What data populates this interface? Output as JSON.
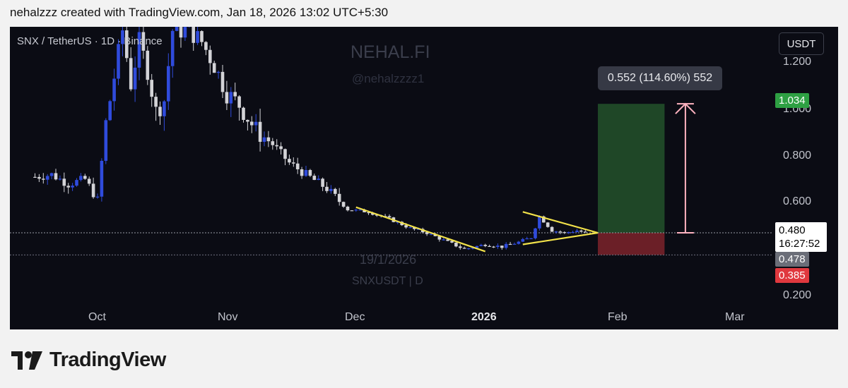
{
  "header": {
    "text": "nehalzzz created with TradingView.com, Jan 18, 2026 13:02 UTC+5:30"
  },
  "symbol_line": "SNX / TetherUS · 1D · Binance",
  "watermarks": {
    "brand": "NEHAL.FI",
    "handle": "@nehalzzzz1",
    "date": "19/1/2026",
    "pair": "SNXUSDT | D"
  },
  "currency": "USDT",
  "measure_label": "0.552 (114.60%) 552",
  "price_tags": {
    "target": "1.034",
    "current": "0.480",
    "countdown": "16:27:52",
    "prev": "0.478",
    "stop": "0.385"
  },
  "colors": {
    "background": "#0b0c14",
    "bull": "#2f4bdc",
    "bear": "#d3d3d7",
    "trendline": "#f2e24a",
    "target_zone": "#1f4727",
    "stop_zone": "#6b1f27",
    "arrow": "#ffb3c0"
  },
  "footer": {
    "brand": "TradingView"
  },
  "chart_data": {
    "type": "candlestick",
    "title": "SNX / TetherUS · 1D · Binance",
    "y_axis": {
      "ticks": [
        "1.200",
        "1.000",
        "0.800",
        "0.600",
        "0.200"
      ],
      "ylim": [
        0.06,
        1.35
      ]
    },
    "x_axis": {
      "ticks": [
        "Oct",
        "Nov",
        "Dec",
        "2026",
        "Feb",
        "Mar"
      ]
    },
    "price_path": [
      [
        "Sep 16",
        0.72
      ],
      [
        "Sep 20",
        0.73
      ],
      [
        "Sep 24",
        0.69
      ],
      [
        "Sep 28",
        0.71
      ],
      [
        "Oct 1",
        0.62
      ],
      [
        "Oct 3",
        0.95
      ],
      [
        "Oct 5",
        1.15
      ],
      [
        "Oct 7",
        1.35
      ],
      [
        "Oct 9",
        1.12
      ],
      [
        "Oct 11",
        1.3
      ],
      [
        "Oct 13",
        1.18
      ],
      [
        "Oct 15",
        1.0
      ],
      [
        "Oct 17",
        1.05
      ],
      [
        "Oct 19",
        1.35
      ],
      [
        "Oct 23",
        1.35
      ],
      [
        "Oct 26",
        1.3
      ],
      [
        "Oct 29",
        1.2
      ],
      [
        "Nov 1",
        1.08
      ],
      [
        "Nov 4",
        1.03
      ],
      [
        "Nov 8",
        0.92
      ],
      [
        "Nov 12",
        0.86
      ],
      [
        "Nov 16",
        0.78
      ],
      [
        "Nov 20",
        0.73
      ],
      [
        "Nov 25",
        0.67
      ],
      [
        "Nov 30",
        0.58
      ],
      [
        "Dec 5",
        0.57
      ],
      [
        "Dec 10",
        0.54
      ],
      [
        "Dec 15",
        0.5
      ],
      [
        "Dec 19",
        0.48
      ],
      [
        "Dec 24",
        0.44
      ],
      [
        "Dec 28",
        0.41
      ],
      [
        "Jan 2",
        0.43
      ],
      [
        "Jan 6",
        0.42
      ],
      [
        "Jan 10",
        0.44
      ],
      [
        "Jan 13",
        0.46
      ],
      [
        "Jan 15",
        0.55
      ],
      [
        "Jan 18",
        0.49
      ],
      [
        "Jan 21",
        0.48
      ],
      [
        "Jan 24",
        0.49
      ],
      [
        "Jan 26",
        0.48
      ]
    ],
    "trendlines": [
      {
        "name": "descending-wedge-upper",
        "from": [
          "Dec 2",
          0.59
        ],
        "to": [
          "Jan 2",
          0.4
        ]
      },
      {
        "name": "triangle-upper",
        "from": [
          "Jan 11",
          0.57
        ],
        "to": [
          "Jan 29",
          0.48
        ]
      },
      {
        "name": "triangle-lower",
        "from": [
          "Jan 11",
          0.43
        ],
        "to": [
          "Jan 29",
          0.48
        ]
      }
    ],
    "long_position": {
      "entry": 0.48,
      "target": 1.034,
      "stop": 0.385,
      "gain": 0.552,
      "gain_pct": 114.6
    },
    "last_price": 0.48,
    "grid": false
  }
}
